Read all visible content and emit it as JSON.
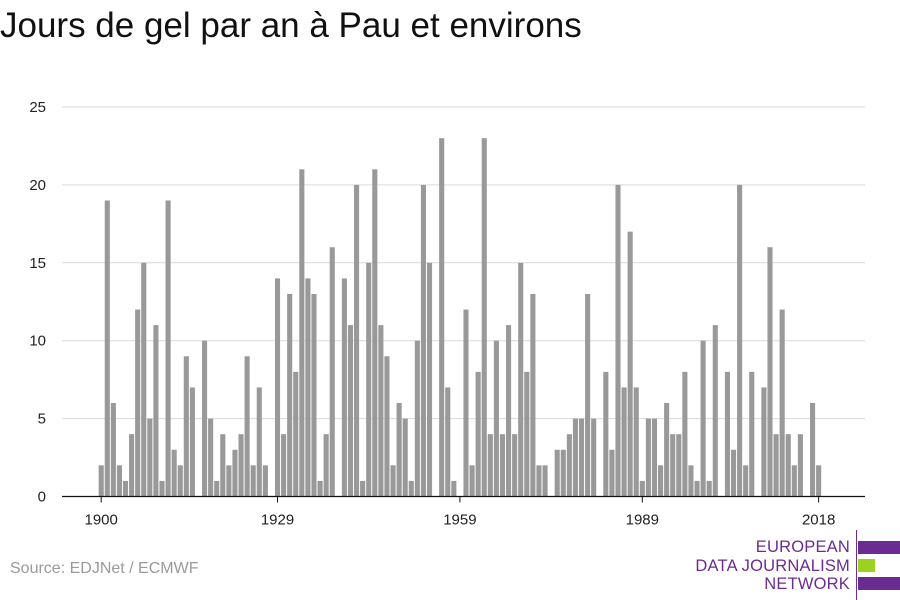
{
  "title": "Jours de gel par an à Pau et environs",
  "source": "Source: EDJNet / ECMWF",
  "logo": {
    "line1": "EUROPEAN",
    "line2": "DATA JOURNALISM",
    "line3": "NETWORK",
    "colors": {
      "purple": "#6b2c91",
      "green": "#9ad21e"
    }
  },
  "chart_data": {
    "type": "bar",
    "title": "Jours de gel par an à Pau et environs",
    "xlabel": "",
    "ylabel": "",
    "ylim": [
      0,
      25
    ],
    "yticks": [
      0,
      5,
      10,
      15,
      20,
      25
    ],
    "xticks": [
      1900,
      1929,
      1959,
      1989,
      2018
    ],
    "grid": true,
    "bar_color": "#999999",
    "x": [
      1900,
      1901,
      1902,
      1903,
      1904,
      1905,
      1906,
      1907,
      1908,
      1909,
      1910,
      1911,
      1912,
      1913,
      1914,
      1915,
      1916,
      1917,
      1918,
      1919,
      1920,
      1921,
      1922,
      1923,
      1924,
      1925,
      1926,
      1927,
      1928,
      1929,
      1930,
      1931,
      1932,
      1933,
      1934,
      1935,
      1936,
      1937,
      1938,
      1939,
      1940,
      1941,
      1942,
      1943,
      1944,
      1945,
      1946,
      1947,
      1948,
      1949,
      1950,
      1951,
      1952,
      1953,
      1954,
      1955,
      1956,
      1957,
      1958,
      1959,
      1960,
      1961,
      1962,
      1963,
      1964,
      1965,
      1966,
      1967,
      1968,
      1969,
      1970,
      1971,
      1972,
      1973,
      1974,
      1975,
      1976,
      1977,
      1978,
      1979,
      1980,
      1981,
      1982,
      1983,
      1984,
      1985,
      1986,
      1987,
      1988,
      1989,
      1990,
      1991,
      1992,
      1993,
      1994,
      1995,
      1996,
      1997,
      1998,
      1999,
      2000,
      2001,
      2002,
      2003,
      2004,
      2005,
      2006,
      2007,
      2008,
      2009,
      2010,
      2011,
      2012,
      2013,
      2014,
      2015,
      2016,
      2017,
      2018,
      2019
    ],
    "values": [
      2,
      19,
      6,
      2,
      1,
      4,
      12,
      15,
      5,
      11,
      1,
      19,
      3,
      2,
      9,
      7,
      0,
      10,
      5,
      1,
      4,
      2,
      3,
      4,
      9,
      2,
      7,
      2,
      0,
      14,
      4,
      13,
      8,
      21,
      14,
      13,
      1,
      4,
      16,
      0,
      14,
      11,
      20,
      1,
      15,
      21,
      11,
      9,
      2,
      6,
      5,
      1,
      10,
      20,
      15,
      0,
      23,
      7,
      1,
      0,
      12,
      2,
      8,
      23,
      4,
      10,
      4,
      11,
      4,
      15,
      8,
      13,
      2,
      2,
      0,
      3,
      3,
      4,
      5,
      5,
      13,
      5,
      0,
      8,
      3,
      20,
      7,
      17,
      7,
      1,
      5,
      5,
      2,
      6,
      4,
      4,
      8,
      2,
      1,
      10,
      1,
      11,
      0,
      8,
      3,
      20,
      2,
      8,
      0,
      7,
      16,
      4,
      12,
      4,
      2,
      4,
      0,
      6,
      2,
      0
    ]
  }
}
